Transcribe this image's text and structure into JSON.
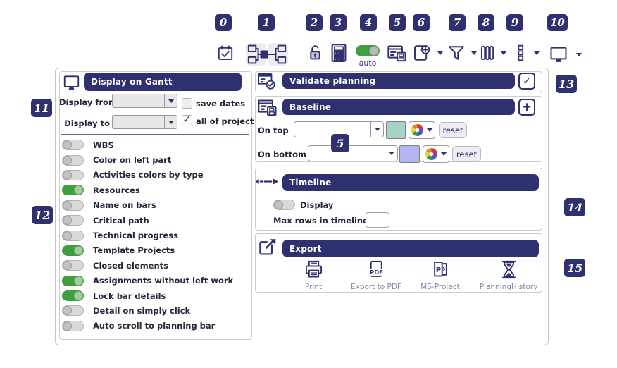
{
  "toolbar": {
    "badges": [
      "0",
      "1",
      "2",
      "3",
      "4",
      "5",
      "6",
      "7",
      "8",
      "9",
      "10"
    ],
    "auto_label": "auto",
    "icons": [
      "calendar-check-icon",
      "dependencies-icon",
      "lock-open-icon",
      "calculator-icon",
      "auto-calculate-toggle",
      "save-planning-view-icon",
      "add-zoom-icon",
      "filter-icon",
      "columns-icon",
      "list-options-icon",
      "display-options-icon"
    ]
  },
  "annotations": {
    "left": [
      "11",
      "12"
    ],
    "right": [
      "13",
      "14",
      "15"
    ],
    "overlay": "5"
  },
  "display_panel": {
    "title": "Display on Gantt",
    "display_from_label": "Display from",
    "display_from_value": "",
    "display_to_label": "Display to",
    "display_to_value": "",
    "save_dates": {
      "label": "save dates",
      "checked": false
    },
    "all_of_project": {
      "label": "all of project",
      "checked": true
    },
    "toggles": [
      {
        "label": "WBS",
        "on": false
      },
      {
        "label": "Color on left part",
        "on": false
      },
      {
        "label": "Activities colors by type",
        "on": false
      },
      {
        "label": "Resources",
        "on": true
      },
      {
        "label": "Name on bars",
        "on": false
      },
      {
        "label": "Critical path",
        "on": false
      },
      {
        "label": "Technical progress",
        "on": false
      },
      {
        "label": "Template Projects",
        "on": true
      },
      {
        "label": "Closed elements",
        "on": false
      },
      {
        "label": "Assignments without left work",
        "on": true
      },
      {
        "label": "Lock bar details",
        "on": true
      },
      {
        "label": "Detail on simply click",
        "on": false
      },
      {
        "label": "Auto scroll to planning bar",
        "on": false
      }
    ]
  },
  "validate_section": {
    "title": "Validate planning",
    "check_glyph": "✓"
  },
  "baseline_section": {
    "title": "Baseline",
    "add_glyph": "+",
    "reset_label": "reset",
    "on_top": {
      "label": "On top",
      "value": "",
      "color": "#a6d3c5"
    },
    "on_bottom": {
      "label": "On bottom",
      "value": "",
      "color": "#b4b6f4"
    }
  },
  "timeline_section": {
    "title": "Timeline",
    "display_toggle": {
      "label": "Display",
      "on": false
    },
    "max_rows_label": "Max rows in timeline",
    "max_rows_value": ""
  },
  "export_section": {
    "title": "Export",
    "items": [
      {
        "label": "Print",
        "icon": "printer-icon"
      },
      {
        "label": "Export to PDF",
        "icon": "pdf-icon"
      },
      {
        "label": "MS-Project",
        "icon": "msproject-icon"
      },
      {
        "label": "PlanningHistory",
        "icon": "hourglass-icon"
      }
    ]
  },
  "colors": {
    "accent_navy": "#2e3070",
    "toggle_on_green": "#3da03d",
    "baseline_top_swatch": "#a6d3c5",
    "baseline_bottom_swatch": "#b4b6f4"
  }
}
